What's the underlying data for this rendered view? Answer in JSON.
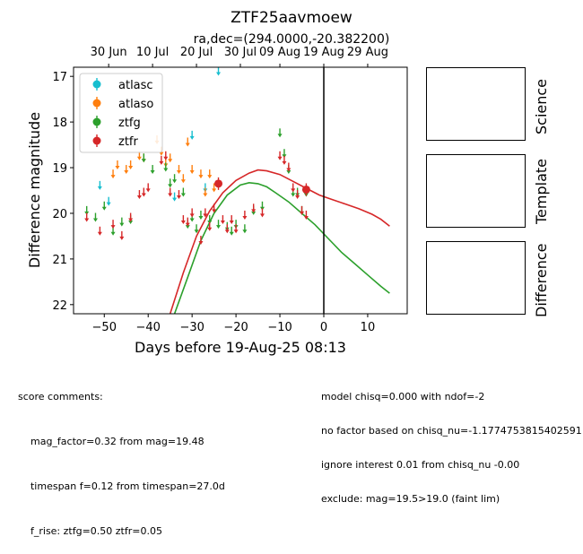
{
  "chart_data": {
    "type": "scatter",
    "title": "ZTF25aavmoew",
    "subtitle": "ra,dec=(294.0000,-20.382200)",
    "xlabel": "Days before 19-Aug-25 08:13",
    "ylabel": "Difference magnitude",
    "xlim": [
      -57,
      19
    ],
    "ylim": [
      22.2,
      16.8
    ],
    "y_inverted": true,
    "x_ticks": [
      -50,
      -40,
      -30,
      -20,
      -10,
      0,
      10
    ],
    "x_tick_labels": [
      "−50",
      "−40",
      "−30",
      "−20",
      "−10",
      "0",
      "10"
    ],
    "y_ticks": [
      17,
      18,
      19,
      20,
      21,
      22
    ],
    "y_tick_labels": [
      "17",
      "18",
      "19",
      "20",
      "21",
      "22"
    ],
    "top_axis_ticks": [
      {
        "x": -49,
        "label": "30 Jun"
      },
      {
        "x": -39,
        "label": "10 Jul"
      },
      {
        "x": -29,
        "label": "20 Jul"
      },
      {
        "x": -19,
        "label": "30 Jul"
      },
      {
        "x": -10,
        "label": "09 Aug"
      },
      {
        "x": 0,
        "label": "19 Aug"
      },
      {
        "x": 10,
        "label": "29 Aug"
      }
    ],
    "vline_x": 0,
    "legend_position": "upper-left",
    "series": [
      {
        "name": "atlasc",
        "color": "#17becf",
        "marker": "errorbar",
        "points": [
          [
            -51,
            19.35
          ],
          [
            -49,
            19.7
          ],
          [
            -30,
            18.25
          ],
          [
            -27,
            19.4
          ],
          [
            -24,
            16.85
          ],
          [
            -34,
            19.6
          ]
        ]
      },
      {
        "name": "atlaso",
        "color": "#ff7f0e",
        "marker": "errorbar",
        "points": [
          [
            -48,
            19.1
          ],
          [
            -47,
            18.9
          ],
          [
            -45,
            19.0
          ],
          [
            -44,
            18.9
          ],
          [
            -42,
            18.7
          ],
          [
            -41,
            18.75
          ],
          [
            -38,
            18.35
          ],
          [
            -37,
            18.6
          ],
          [
            -36,
            18.85
          ],
          [
            -35,
            18.75
          ],
          [
            -33,
            19.0
          ],
          [
            -32,
            19.2
          ],
          [
            -31,
            18.4
          ],
          [
            -30,
            19.0
          ],
          [
            -28,
            19.1
          ],
          [
            -27,
            19.5
          ],
          [
            -26,
            19.1
          ],
          [
            -25,
            19.4
          ]
        ]
      },
      {
        "name": "ztfg",
        "color": "#2ca02c",
        "marker": "errorbar",
        "points": [
          [
            -54,
            19.9
          ],
          [
            -52,
            20.05
          ],
          [
            -50,
            19.8
          ],
          [
            -48,
            20.35
          ],
          [
            -46,
            20.15
          ],
          [
            -44,
            20.1
          ],
          [
            -41,
            18.75
          ],
          [
            -39,
            19.0
          ],
          [
            -36,
            18.95
          ],
          [
            -35,
            19.3
          ],
          [
            -34,
            19.2
          ],
          [
            -32,
            19.5
          ],
          [
            -31,
            20.2
          ],
          [
            -30,
            20.05
          ],
          [
            -29,
            20.3
          ],
          [
            -28,
            20.0
          ],
          [
            -26,
            20.1
          ],
          [
            -24,
            20.2
          ],
          [
            -22,
            20.25
          ],
          [
            -21,
            20.35
          ],
          [
            -20,
            20.2
          ],
          [
            -18,
            20.3
          ],
          [
            -16,
            19.9
          ],
          [
            -14,
            19.8
          ],
          [
            -10,
            18.2
          ],
          [
            -9,
            18.65
          ],
          [
            -8,
            19.0
          ],
          [
            -7,
            19.5
          ],
          [
            -6,
            19.5
          ],
          [
            -5,
            19.9
          ],
          [
            -4,
            19.5
          ]
        ]
      },
      {
        "name": "ztfr",
        "color": "#d62728",
        "marker": "errorbar",
        "points": [
          [
            -54,
            20.05
          ],
          [
            -51,
            20.35
          ],
          [
            -48,
            20.2
          ],
          [
            -46,
            20.45
          ],
          [
            -44,
            20.05
          ],
          [
            -42,
            19.55
          ],
          [
            -41,
            19.5
          ],
          [
            -40,
            19.4
          ],
          [
            -37,
            18.8
          ],
          [
            -36,
            18.7
          ],
          [
            -35,
            19.5
          ],
          [
            -33,
            19.55
          ],
          [
            -32,
            20.1
          ],
          [
            -31,
            20.15
          ],
          [
            -30,
            19.95
          ],
          [
            -28,
            20.55
          ],
          [
            -27,
            19.95
          ],
          [
            -26,
            20.25
          ],
          [
            -25,
            19.85
          ],
          [
            -23,
            20.1
          ],
          [
            -22,
            20.3
          ],
          [
            -21,
            20.1
          ],
          [
            -20,
            20.3
          ],
          [
            -18,
            20.0
          ],
          [
            -16,
            19.85
          ],
          [
            -14,
            19.95
          ],
          [
            -10,
            18.7
          ],
          [
            -9,
            18.8
          ],
          [
            -8,
            18.95
          ],
          [
            -7,
            19.4
          ],
          [
            -6,
            19.55
          ],
          [
            -5,
            19.9
          ],
          [
            -4,
            20.0
          ]
        ]
      }
    ],
    "highlight_points": [
      {
        "series": "ztfr",
        "x": -24,
        "y": 19.35
      },
      {
        "series": "ztfr",
        "x": -4,
        "y": 19.48
      }
    ],
    "model_curves": [
      {
        "name": "ztfr-model",
        "color": "#d62728",
        "points": [
          [
            -35,
            22.2
          ],
          [
            -32,
            21.3
          ],
          [
            -29,
            20.5
          ],
          [
            -26,
            19.95
          ],
          [
            -23,
            19.55
          ],
          [
            -20,
            19.28
          ],
          [
            -17,
            19.12
          ],
          [
            -15,
            19.05
          ],
          [
            -13,
            19.07
          ],
          [
            -10,
            19.15
          ],
          [
            -7,
            19.3
          ],
          [
            -4,
            19.45
          ],
          [
            -1,
            19.6
          ],
          [
            2,
            19.7
          ],
          [
            5,
            19.8
          ],
          [
            8,
            19.9
          ],
          [
            11,
            20.02
          ],
          [
            13,
            20.13
          ],
          [
            15,
            20.28
          ]
        ]
      },
      {
        "name": "ztfg-model",
        "color": "#2ca02c",
        "points": [
          [
            -34,
            22.2
          ],
          [
            -31,
            21.4
          ],
          [
            -28,
            20.6
          ],
          [
            -25,
            20.0
          ],
          [
            -22,
            19.6
          ],
          [
            -19,
            19.38
          ],
          [
            -17,
            19.33
          ],
          [
            -15,
            19.35
          ],
          [
            -13,
            19.42
          ],
          [
            -11,
            19.55
          ],
          [
            -8,
            19.75
          ],
          [
            -5,
            20.0
          ],
          [
            -2,
            20.25
          ],
          [
            1,
            20.55
          ],
          [
            4,
            20.85
          ],
          [
            7,
            21.1
          ],
          [
            10,
            21.35
          ],
          [
            13,
            21.6
          ],
          [
            15,
            21.75
          ]
        ]
      }
    ]
  },
  "panels": [
    {
      "label": "Science"
    },
    {
      "label": "Template"
    },
    {
      "label": "Difference"
    }
  ],
  "comments_left": [
    "score comments:",
    "    mag_factor=0.32 from mag=19.48",
    "    timespan f=0.12 from timespan=27.0d",
    "    f_rise: ztfg=0.50 ztfr=0.05"
  ],
  "comments_right": [
    "model chisq=0.000 with ndof=-2",
    "no factor based on chisq_nu=-1.1774753815402591",
    "ignore interest 0.01 from chisq_nu -0.00",
    "exclude: mag=19.5>19.0 (faint lim)"
  ]
}
